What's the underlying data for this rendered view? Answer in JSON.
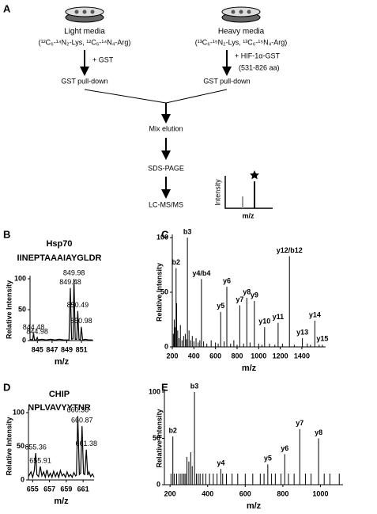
{
  "diagram": {
    "label": "A",
    "light": {
      "title": "Light media",
      "formula": "(¹²C₆-¹⁴N₂-Lys, ¹²C₆-¹⁴N₄-Arg)",
      "treatment": "+ GST",
      "step": "GST pull-down"
    },
    "heavy": {
      "title": "Heavy media",
      "formula": "(¹³C₆-¹⁵N₂-Lys, ¹³C₆-¹⁵N₄-Arg)",
      "treatment": "+ HIF-1α-GST",
      "treatment_note": "(531-826 aa)",
      "step": "GST pull-down"
    },
    "steps": [
      "Mix elution",
      "SDS-PAGE",
      "LC-MS/MS"
    ],
    "inset": {
      "y_label": "Intensity",
      "x_label": "m/z"
    }
  },
  "chart_data": [
    {
      "type": "line",
      "panel": "B",
      "title": "Hsp70",
      "subtitle": "IINEPTAAAIAYGLDR",
      "x_label": "m/z",
      "y_label": "Relative Intensity",
      "color": "#000000",
      "x": [
        844.0,
        844.35,
        844.48,
        844.6,
        844.85,
        844.98,
        845.1,
        845.6,
        846.2,
        846.8,
        847.4,
        848.0,
        848.6,
        849.3,
        849.48,
        849.65,
        849.85,
        849.98,
        850.15,
        850.35,
        850.49,
        850.65,
        850.85,
        850.98,
        851.15,
        851.5,
        852.0,
        852.5
      ],
      "values": [
        2,
        1,
        12,
        1,
        1,
        5,
        1,
        2,
        1,
        2,
        1,
        2,
        1,
        1,
        85,
        2,
        3,
        100,
        2,
        2,
        48,
        2,
        1,
        22,
        1,
        2,
        1,
        1
      ],
      "peak_labels": [
        844.48,
        844.98,
        849.48,
        849.98,
        850.49,
        850.98
      ],
      "xlim": [
        844,
        852.6
      ],
      "ylim": [
        0,
        100
      ],
      "xticks": [
        845,
        847,
        849,
        851
      ],
      "yticks": [
        0,
        50,
        100
      ]
    },
    {
      "type": "stick",
      "panel": "C",
      "x_label": "m/z",
      "y_label": "Relative Intensity",
      "color": "#000000",
      "x": [
        210,
        218,
        225,
        235,
        240,
        250,
        262,
        275,
        290,
        305,
        320,
        332,
        340,
        355,
        370,
        385,
        400,
        420,
        440,
        455,
        470,
        490,
        520,
        560,
        600,
        625,
        648,
        680,
        705,
        740,
        770,
        800,
        825,
        860,
        890,
        920,
        960,
        1000,
        1030,
        1055,
        1100,
        1150,
        1180,
        1220,
        1285,
        1330,
        1405,
        1450,
        1480,
        1520,
        1560,
        1590
      ],
      "values": [
        12,
        25,
        18,
        72,
        40,
        15,
        8,
        20,
        6,
        10,
        12,
        7,
        100,
        15,
        6,
        10,
        5,
        8,
        4,
        6,
        62,
        5,
        3,
        6,
        4,
        3,
        32,
        5,
        55,
        3,
        6,
        2,
        38,
        3,
        45,
        4,
        42,
        3,
        2,
        18,
        3,
        2,
        22,
        3,
        83,
        2,
        8,
        3,
        2,
        24,
        2,
        2
      ],
      "peak_labels": [
        null,
        null,
        null,
        "b2",
        null,
        null,
        null,
        null,
        null,
        null,
        null,
        null,
        "b3",
        null,
        null,
        null,
        null,
        null,
        null,
        null,
        "y4/b4",
        null,
        null,
        null,
        null,
        null,
        "y5",
        null,
        "y6",
        null,
        null,
        null,
        "y7",
        null,
        "y8",
        null,
        "y9",
        null,
        null,
        "y10",
        null,
        null,
        "y11",
        null,
        "y12/b12",
        null,
        "y13",
        null,
        null,
        "y14",
        null,
        "y15"
      ],
      "xlim": [
        200,
        1620
      ],
      "ylim": [
        0,
        100
      ],
      "xticks": [
        200,
        400,
        600,
        800,
        1000,
        1200,
        1400
      ],
      "yticks": [
        0,
        50,
        100
      ]
    },
    {
      "type": "line",
      "panel": "D",
      "title": "CHIP",
      "subtitle": "NPLVAVYYTNR",
      "x_label": "m/z",
      "y_label": "Relative Intensity",
      "color": "#000000",
      "x": [
        654.5,
        654.8,
        655.0,
        655.2,
        655.36,
        655.5,
        655.7,
        655.91,
        656.1,
        656.3,
        656.5,
        656.7,
        656.9,
        657.1,
        657.3,
        657.5,
        657.7,
        657.9,
        658.1,
        658.3,
        658.5,
        658.7,
        658.9,
        659.1,
        659.3,
        659.5,
        659.7,
        659.9,
        660.1,
        660.2,
        660.36,
        660.55,
        660.7,
        660.87,
        661.05,
        661.2,
        661.38,
        661.55,
        661.7,
        661.9,
        662.1,
        662.3
      ],
      "values": [
        5,
        12,
        4,
        14,
        40,
        8,
        5,
        20,
        6,
        12,
        4,
        15,
        5,
        10,
        4,
        13,
        5,
        11,
        4,
        14,
        6,
        9,
        4,
        12,
        5,
        8,
        4,
        11,
        6,
        7,
        95,
        8,
        10,
        80,
        9,
        8,
        45,
        7,
        12,
        5,
        9,
        4
      ],
      "peak_labels": [
        655.36,
        655.91,
        660.36,
        660.87,
        661.38
      ],
      "xlim": [
        654.5,
        662.3
      ],
      "ylim": [
        0,
        100
      ],
      "xticks": [
        655,
        657,
        659,
        661
      ],
      "yticks": [
        0,
        50,
        100
      ]
    },
    {
      "type": "stick",
      "panel": "E",
      "x_label": "m/z",
      "y_label": "Relative Intensity",
      "color": "#000000",
      "x": [
        205,
        215,
        222,
        235,
        248,
        258,
        268,
        275,
        283,
        290,
        300,
        310,
        318,
        330,
        340,
        350,
        360,
        375,
        390,
        410,
        430,
        450,
        470,
        480,
        500,
        530,
        560,
        600,
        640,
        680,
        700,
        720,
        740,
        760,
        790,
        810,
        830,
        860,
        890,
        920,
        950,
        990,
        1020,
        1050,
        1100
      ],
      "values": [
        12,
        52,
        12,
        12,
        12,
        12,
        12,
        12,
        12,
        30,
        25,
        35,
        20,
        100,
        12,
        12,
        12,
        12,
        12,
        12,
        12,
        12,
        17,
        12,
        12,
        12,
        12,
        12,
        12,
        12,
        12,
        22,
        12,
        12,
        12,
        33,
        12,
        12,
        60,
        12,
        12,
        50,
        12,
        12,
        12
      ],
      "peak_labels": [
        null,
        "b2",
        null,
        null,
        null,
        null,
        null,
        null,
        null,
        null,
        null,
        null,
        null,
        "b3",
        null,
        null,
        null,
        null,
        null,
        null,
        null,
        null,
        "y4",
        null,
        null,
        null,
        null,
        null,
        null,
        null,
        null,
        "y5",
        null,
        null,
        null,
        "y6",
        null,
        null,
        "y7",
        null,
        null,
        "y8",
        null,
        null,
        null
      ],
      "xlim": [
        170,
        1120
      ],
      "ylim": [
        0,
        100
      ],
      "xticks": [
        200,
        400,
        600,
        800,
        1000
      ],
      "yticks": [
        0,
        50,
        100
      ]
    }
  ]
}
